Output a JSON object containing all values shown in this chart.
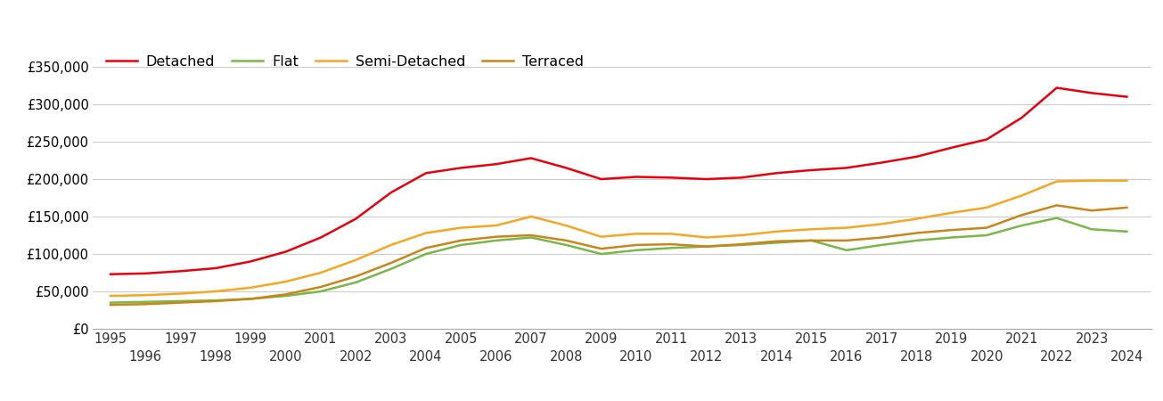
{
  "series": {
    "Detached": {
      "color": "#e8000d",
      "years": [
        1995,
        1996,
        1997,
        1998,
        1999,
        2000,
        2001,
        2002,
        2003,
        2004,
        2005,
        2006,
        2007,
        2008,
        2009,
        2010,
        2011,
        2012,
        2013,
        2014,
        2015,
        2016,
        2017,
        2018,
        2019,
        2020,
        2021,
        2022,
        2023,
        2024
      ],
      "values": [
        73000,
        74000,
        77000,
        81000,
        90000,
        103000,
        122000,
        147000,
        182000,
        208000,
        215000,
        220000,
        228000,
        215000,
        200000,
        203000,
        202000,
        200000,
        202000,
        208000,
        212000,
        215000,
        222000,
        230000,
        242000,
        253000,
        282000,
        322000,
        315000,
        310000
      ]
    },
    "Flat": {
      "color": "#7ab648",
      "years": [
        1995,
        1996,
        1997,
        1998,
        1999,
        2000,
        2001,
        2002,
        2003,
        2004,
        2005,
        2006,
        2007,
        2008,
        2009,
        2010,
        2011,
        2012,
        2013,
        2014,
        2015,
        2016,
        2017,
        2018,
        2019,
        2020,
        2021,
        2022,
        2023,
        2024
      ],
      "values": [
        35000,
        36000,
        37000,
        38000,
        40000,
        44000,
        50000,
        62000,
        80000,
        100000,
        112000,
        118000,
        122000,
        112000,
        100000,
        105000,
        108000,
        110000,
        112000,
        115000,
        118000,
        105000,
        112000,
        118000,
        122000,
        125000,
        138000,
        148000,
        133000,
        130000
      ]
    },
    "Semi-Detached": {
      "color": "#f5a623",
      "years": [
        1995,
        1996,
        1997,
        1998,
        1999,
        2000,
        2001,
        2002,
        2003,
        2004,
        2005,
        2006,
        2007,
        2008,
        2009,
        2010,
        2011,
        2012,
        2013,
        2014,
        2015,
        2016,
        2017,
        2018,
        2019,
        2020,
        2021,
        2022,
        2023,
        2024
      ],
      "values": [
        44000,
        45000,
        47000,
        50000,
        55000,
        63000,
        75000,
        92000,
        112000,
        128000,
        135000,
        138000,
        150000,
        138000,
        123000,
        127000,
        127000,
        122000,
        125000,
        130000,
        133000,
        135000,
        140000,
        147000,
        155000,
        162000,
        178000,
        197000,
        198000,
        198000
      ]
    },
    "Terraced": {
      "color": "#c8861a",
      "years": [
        1995,
        1996,
        1997,
        1998,
        1999,
        2000,
        2001,
        2002,
        2003,
        2004,
        2005,
        2006,
        2007,
        2008,
        2009,
        2010,
        2011,
        2012,
        2013,
        2014,
        2015,
        2016,
        2017,
        2018,
        2019,
        2020,
        2021,
        2022,
        2023,
        2024
      ],
      "values": [
        32000,
        33000,
        35000,
        37000,
        40000,
        46000,
        56000,
        70000,
        88000,
        108000,
        118000,
        123000,
        125000,
        118000,
        107000,
        112000,
        113000,
        110000,
        113000,
        117000,
        118000,
        118000,
        122000,
        128000,
        132000,
        135000,
        152000,
        165000,
        158000,
        162000
      ]
    }
  },
  "ylim": [
    0,
    375000
  ],
  "yticks": [
    0,
    50000,
    100000,
    150000,
    200000,
    250000,
    300000,
    350000
  ],
  "background_color": "#ffffff",
  "grid_color": "#cccccc",
  "linewidth": 1.8,
  "fontsize_ticks": 10.5,
  "fontsize_legend": 11.5
}
